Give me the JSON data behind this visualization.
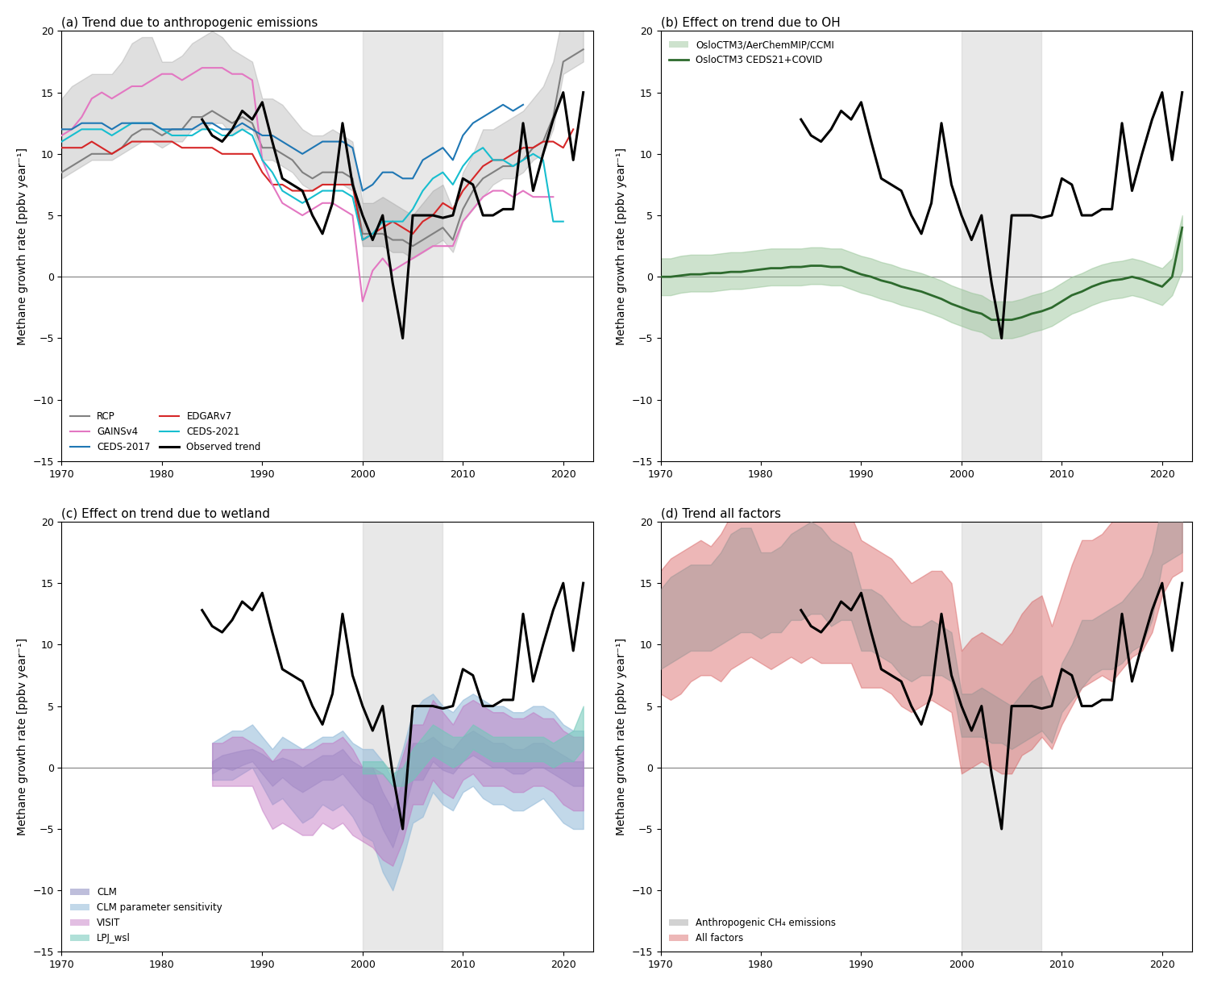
{
  "title_a": "(a) Trend due to anthropogenic emissions",
  "title_b": "(b) Effect on trend due to OH",
  "title_c": "(c) Effect on trend due to wetland",
  "title_d": "(d) Trend all factors",
  "ylabel": "Methane growth rate [ppbv year⁻¹]",
  "xlim": [
    1970,
    2023
  ],
  "ylim": [
    -15,
    20
  ],
  "yticks": [
    -15,
    -10,
    -5,
    0,
    5,
    10,
    15,
    20
  ],
  "shade_region": [
    2000,
    2008
  ],
  "years_obs": [
    1984,
    1985,
    1986,
    1987,
    1988,
    1989,
    1990,
    1991,
    1992,
    1993,
    1994,
    1995,
    1996,
    1997,
    1998,
    1999,
    2000,
    2001,
    2002,
    2003,
    2004,
    2005,
    2006,
    2007,
    2008,
    2009,
    2010,
    2011,
    2012,
    2013,
    2014,
    2015,
    2016,
    2017,
    2018,
    2019,
    2020,
    2021,
    2022
  ],
  "obs": [
    12.8,
    11.5,
    11.0,
    12.0,
    13.5,
    12.8,
    14.2,
    11.0,
    8.0,
    7.5,
    7.0,
    5.0,
    3.5,
    6.0,
    12.5,
    7.5,
    5.0,
    3.0,
    5.0,
    -0.5,
    -5.0,
    5.0,
    5.0,
    5.0,
    4.8,
    5.0,
    8.0,
    7.5,
    5.0,
    5.0,
    5.5,
    5.5,
    12.5,
    7.0,
    10.0,
    12.8,
    15.0,
    9.5,
    15.0
  ],
  "years_rcp": [
    1970,
    1971,
    1972,
    1973,
    1974,
    1975,
    1976,
    1977,
    1978,
    1979,
    1980,
    1981,
    1982,
    1983,
    1984,
    1985,
    1986,
    1987,
    1988,
    1989,
    1990,
    1991,
    1992,
    1993,
    1994,
    1995,
    1996,
    1997,
    1998,
    1999,
    2000,
    2001,
    2002,
    2003,
    2004,
    2005,
    2006,
    2007,
    2008,
    2009,
    2010,
    2011,
    2012,
    2013,
    2014,
    2015,
    2016,
    2017,
    2018,
    2019,
    2020,
    2021,
    2022
  ],
  "rcp_mid": [
    8.5,
    9.0,
    9.5,
    10.0,
    10.0,
    10.0,
    10.5,
    11.5,
    12.0,
    12.0,
    11.5,
    12.0,
    12.0,
    13.0,
    13.0,
    13.5,
    13.0,
    12.5,
    13.0,
    12.5,
    10.5,
    10.5,
    10.0,
    9.5,
    8.5,
    8.0,
    8.5,
    8.5,
    8.5,
    8.0,
    3.5,
    3.5,
    3.5,
    3.0,
    3.0,
    2.5,
    3.0,
    3.5,
    4.0,
    3.0,
    5.5,
    7.0,
    8.0,
    8.5,
    9.0,
    9.0,
    9.5,
    10.5,
    11.0,
    13.0,
    17.5,
    18.0,
    18.5
  ],
  "rcp_lo": [
    8.0,
    8.5,
    9.0,
    9.5,
    9.5,
    9.5,
    10.0,
    10.5,
    11.0,
    11.0,
    10.5,
    11.0,
    11.0,
    12.0,
    12.0,
    12.5,
    12.5,
    11.5,
    12.0,
    12.0,
    9.5,
    9.5,
    9.0,
    8.5,
    7.5,
    7.0,
    7.5,
    7.5,
    7.5,
    7.0,
    2.5,
    2.5,
    2.5,
    2.0,
    2.0,
    1.5,
    2.0,
    2.5,
    3.0,
    2.0,
    4.5,
    5.5,
    6.5,
    7.5,
    8.0,
    8.0,
    8.5,
    9.5,
    10.0,
    12.0,
    16.5,
    17.0,
    17.5
  ],
  "rcp_hi": [
    14.5,
    15.5,
    16.0,
    16.5,
    16.5,
    16.5,
    17.5,
    19.0,
    19.5,
    19.5,
    17.5,
    17.5,
    18.0,
    19.0,
    19.5,
    20.0,
    19.5,
    18.5,
    18.0,
    17.5,
    14.5,
    14.5,
    14.0,
    13.0,
    12.0,
    11.5,
    11.5,
    12.0,
    11.5,
    11.0,
    6.0,
    6.0,
    6.5,
    6.0,
    5.5,
    5.0,
    6.0,
    7.0,
    7.5,
    5.5,
    8.5,
    10.0,
    12.0,
    12.0,
    12.5,
    13.0,
    13.5,
    14.5,
    15.5,
    17.5,
    21.5,
    22.0,
    22.0
  ],
  "years_edgar": [
    1970,
    1971,
    1972,
    1973,
    1974,
    1975,
    1976,
    1977,
    1978,
    1979,
    1980,
    1981,
    1982,
    1983,
    1984,
    1985,
    1986,
    1987,
    1988,
    1989,
    1990,
    1991,
    1992,
    1993,
    1994,
    1995,
    1996,
    1997,
    1998,
    1999,
    2000,
    2001,
    2002,
    2003,
    2004,
    2005,
    2006,
    2007,
    2008,
    2009,
    2010,
    2011,
    2012,
    2013,
    2014,
    2015,
    2016,
    2017,
    2018,
    2019,
    2020,
    2021
  ],
  "edgar": [
    10.5,
    10.5,
    10.5,
    11.0,
    10.5,
    10.0,
    10.5,
    11.0,
    11.0,
    11.0,
    11.0,
    11.0,
    10.5,
    10.5,
    10.5,
    10.5,
    10.0,
    10.0,
    10.0,
    10.0,
    8.5,
    7.5,
    7.5,
    7.0,
    7.0,
    7.0,
    7.5,
    7.5,
    7.5,
    7.5,
    3.0,
    3.5,
    4.0,
    4.5,
    4.0,
    3.5,
    4.5,
    5.0,
    6.0,
    5.5,
    7.0,
    8.0,
    9.0,
    9.5,
    9.5,
    10.0,
    10.5,
    10.5,
    11.0,
    11.0,
    10.5,
    12.0
  ],
  "years_gains": [
    1970,
    1971,
    1972,
    1973,
    1974,
    1975,
    1976,
    1977,
    1978,
    1979,
    1980,
    1981,
    1982,
    1983,
    1984,
    1985,
    1986,
    1987,
    1988,
    1989,
    1990,
    1991,
    1992,
    1993,
    1994,
    1995,
    1996,
    1997,
    1998,
    1999,
    2000,
    2001,
    2002,
    2003,
    2004,
    2005,
    2006,
    2007,
    2008,
    2009,
    2010,
    2011,
    2012,
    2013,
    2014,
    2015,
    2016,
    2017,
    2018,
    2019
  ],
  "gains": [
    11.5,
    12.0,
    13.0,
    14.5,
    15.0,
    14.5,
    15.0,
    15.5,
    15.5,
    16.0,
    16.5,
    16.5,
    16.0,
    16.5,
    17.0,
    17.0,
    17.0,
    16.5,
    16.5,
    16.0,
    9.5,
    7.5,
    6.0,
    5.5,
    5.0,
    5.5,
    6.0,
    6.0,
    5.5,
    5.0,
    -2.0,
    0.5,
    1.5,
    0.5,
    1.0,
    1.5,
    2.0,
    2.5,
    2.5,
    2.5,
    4.5,
    5.5,
    6.5,
    7.0,
    7.0,
    6.5,
    7.0,
    6.5,
    6.5,
    6.5
  ],
  "years_ceds17": [
    1970,
    1971,
    1972,
    1973,
    1974,
    1975,
    1976,
    1977,
    1978,
    1979,
    1980,
    1981,
    1982,
    1983,
    1984,
    1985,
    1986,
    1987,
    1988,
    1989,
    1990,
    1991,
    1992,
    1993,
    1994,
    1995,
    1996,
    1997,
    1998,
    1999,
    2000,
    2001,
    2002,
    2003,
    2004,
    2005,
    2006,
    2007,
    2008,
    2009,
    2010,
    2011,
    2012,
    2013,
    2014,
    2015,
    2016
  ],
  "ceds17": [
    12.0,
    12.0,
    12.5,
    12.5,
    12.5,
    12.0,
    12.5,
    12.5,
    12.5,
    12.5,
    12.0,
    12.0,
    12.0,
    12.0,
    12.5,
    12.5,
    12.0,
    12.0,
    12.5,
    12.0,
    11.5,
    11.5,
    11.0,
    10.5,
    10.0,
    10.5,
    11.0,
    11.0,
    11.0,
    10.5,
    7.0,
    7.5,
    8.5,
    8.5,
    8.0,
    8.0,
    9.5,
    10.0,
    10.5,
    9.5,
    11.5,
    12.5,
    13.0,
    13.5,
    14.0,
    13.5,
    14.0
  ],
  "years_ceds21": [
    1970,
    1971,
    1972,
    1973,
    1974,
    1975,
    1976,
    1977,
    1978,
    1979,
    1980,
    1981,
    1982,
    1983,
    1984,
    1985,
    1986,
    1987,
    1988,
    1989,
    1990,
    1991,
    1992,
    1993,
    1994,
    1995,
    1996,
    1997,
    1998,
    1999,
    2000,
    2001,
    2002,
    2003,
    2004,
    2005,
    2006,
    2007,
    2008,
    2009,
    2010,
    2011,
    2012,
    2013,
    2014,
    2015,
    2016,
    2017,
    2018,
    2019,
    2020
  ],
  "ceds21": [
    11.0,
    11.5,
    12.0,
    12.0,
    12.0,
    11.5,
    12.0,
    12.5,
    12.5,
    12.5,
    12.0,
    11.5,
    11.5,
    11.5,
    12.0,
    12.0,
    11.5,
    11.5,
    12.0,
    11.5,
    9.5,
    8.5,
    7.0,
    6.5,
    6.0,
    6.5,
    7.0,
    7.0,
    7.0,
    6.5,
    3.0,
    3.5,
    4.5,
    4.5,
    4.5,
    5.5,
    7.0,
    8.0,
    8.5,
    7.5,
    9.0,
    10.0,
    10.5,
    9.5,
    9.5,
    9.0,
    9.5,
    10.0,
    9.5,
    4.5,
    4.5
  ],
  "years_oh_green": [
    1970,
    1971,
    1972,
    1973,
    1974,
    1975,
    1976,
    1977,
    1978,
    1979,
    1980,
    1981,
    1982,
    1983,
    1984,
    1985,
    1986,
    1987,
    1988,
    1989,
    1990,
    1991,
    1992,
    1993,
    1994,
    1995,
    1996,
    1997,
    1998,
    1999,
    2000,
    2001,
    2002,
    2003,
    2004,
    2005,
    2006,
    2007,
    2008,
    2009,
    2010,
    2011,
    2012,
    2013,
    2014,
    2015,
    2016,
    2017,
    2018,
    2019,
    2020,
    2021,
    2022
  ],
  "oh_green_mid": [
    0.0,
    0.0,
    0.1,
    0.2,
    0.2,
    0.3,
    0.3,
    0.4,
    0.4,
    0.5,
    0.6,
    0.7,
    0.7,
    0.8,
    0.8,
    0.9,
    0.9,
    0.8,
    0.8,
    0.5,
    0.2,
    0.0,
    -0.3,
    -0.5,
    -0.8,
    -1.0,
    -1.2,
    -1.5,
    -1.8,
    -2.2,
    -2.5,
    -2.8,
    -3.0,
    -3.5,
    -3.5,
    -3.5,
    -3.3,
    -3.0,
    -2.8,
    -2.5,
    -2.0,
    -1.5,
    -1.2,
    -0.8,
    -0.5,
    -0.3,
    -0.2,
    0.0,
    -0.2,
    -0.5,
    -0.8,
    0.0,
    4.0
  ],
  "oh_green_lo": [
    -1.5,
    -1.5,
    -1.3,
    -1.2,
    -1.2,
    -1.2,
    -1.1,
    -1.0,
    -1.0,
    -0.9,
    -0.8,
    -0.7,
    -0.7,
    -0.7,
    -0.7,
    -0.6,
    -0.6,
    -0.7,
    -0.7,
    -1.0,
    -1.3,
    -1.5,
    -1.8,
    -2.0,
    -2.3,
    -2.5,
    -2.7,
    -3.0,
    -3.3,
    -3.7,
    -4.0,
    -4.3,
    -4.5,
    -5.0,
    -5.0,
    -5.0,
    -4.8,
    -4.5,
    -4.3,
    -4.0,
    -3.5,
    -3.0,
    -2.7,
    -2.3,
    -2.0,
    -1.8,
    -1.7,
    -1.5,
    -1.7,
    -2.0,
    -2.3,
    -1.5,
    0.5
  ],
  "oh_green_hi": [
    1.5,
    1.5,
    1.7,
    1.8,
    1.8,
    1.8,
    1.9,
    2.0,
    2.0,
    2.1,
    2.2,
    2.3,
    2.3,
    2.3,
    2.3,
    2.4,
    2.4,
    2.3,
    2.3,
    2.0,
    1.7,
    1.5,
    1.2,
    1.0,
    0.7,
    0.5,
    0.3,
    0.0,
    -0.3,
    -0.7,
    -1.0,
    -1.3,
    -1.5,
    -2.0,
    -2.0,
    -2.0,
    -1.8,
    -1.5,
    -1.3,
    -1.0,
    -0.5,
    0.0,
    0.3,
    0.7,
    1.0,
    1.2,
    1.3,
    1.5,
    1.3,
    1.0,
    0.7,
    1.5,
    5.0
  ],
  "years_wetland_clm": [
    1985,
    1986,
    1987,
    1988,
    1989,
    1990,
    1991,
    1992,
    1993,
    1994,
    1995,
    1996,
    1997,
    1998,
    1999,
    2000,
    2001,
    2002,
    2003,
    2004,
    2005,
    2006,
    2007,
    2008,
    2009,
    2010,
    2011,
    2012,
    2013,
    2014,
    2015,
    2016,
    2017,
    2018,
    2019,
    2020,
    2021,
    2022
  ],
  "clm_lo": [
    -0.5,
    0.0,
    -0.2,
    0.2,
    0.5,
    -0.5,
    -1.5,
    -0.8,
    -1.5,
    -2.0,
    -1.5,
    -1.0,
    -1.0,
    -0.5,
    -1.5,
    -2.5,
    -3.0,
    -5.0,
    -6.5,
    -4.0,
    -1.0,
    -1.0,
    0.5,
    -0.2,
    -0.5,
    0.5,
    1.0,
    0.5,
    0.0,
    0.0,
    -0.5,
    -0.5,
    0.0,
    0.0,
    -0.5,
    -1.0,
    -1.5,
    -1.5
  ],
  "clm_hi": [
    0.5,
    1.0,
    1.2,
    1.4,
    1.5,
    1.1,
    0.5,
    0.8,
    0.5,
    0.0,
    0.5,
    1.0,
    1.0,
    1.5,
    0.5,
    0.0,
    0.0,
    -2.0,
    -3.5,
    -1.0,
    2.0,
    2.0,
    2.5,
    1.8,
    1.5,
    2.5,
    3.0,
    2.5,
    2.0,
    2.0,
    1.5,
    1.5,
    2.0,
    2.0,
    1.5,
    1.0,
    0.5,
    0.5
  ],
  "years_wetland_clm_ps": [
    1985,
    1986,
    1987,
    1988,
    1989,
    1990,
    1991,
    1992,
    1993,
    1994,
    1995,
    1996,
    1997,
    1998,
    1999,
    2000,
    2001,
    2002,
    2003,
    2004,
    2005,
    2006,
    2007,
    2008,
    2009,
    2010,
    2011,
    2012,
    2013,
    2014,
    2015,
    2016,
    2017,
    2018,
    2019,
    2020,
    2021,
    2022
  ],
  "clm_ps_lo": [
    -1.0,
    -1.0,
    -1.0,
    -0.5,
    0.0,
    -1.5,
    -3.0,
    -2.5,
    -3.5,
    -4.5,
    -4.0,
    -3.0,
    -3.5,
    -3.0,
    -4.0,
    -5.5,
    -6.0,
    -8.5,
    -10.0,
    -7.5,
    -4.5,
    -4.0,
    -2.0,
    -3.0,
    -3.5,
    -2.0,
    -1.5,
    -2.5,
    -3.0,
    -3.0,
    -3.5,
    -3.5,
    -3.0,
    -2.5,
    -3.5,
    -4.5,
    -5.0,
    -5.0
  ],
  "clm_ps_hi": [
    2.0,
    2.5,
    3.0,
    3.0,
    3.5,
    2.5,
    1.5,
    2.5,
    2.0,
    1.5,
    2.0,
    2.5,
    2.5,
    3.0,
    2.0,
    1.5,
    1.5,
    0.5,
    -1.0,
    1.5,
    4.5,
    5.5,
    6.0,
    5.0,
    4.5,
    5.5,
    6.0,
    5.5,
    5.0,
    5.0,
    4.5,
    4.5,
    5.0,
    5.0,
    4.5,
    3.5,
    3.0,
    3.0
  ],
  "years_wetland_visit": [
    1985,
    1986,
    1987,
    1988,
    1989,
    1990,
    1991,
    1992,
    1993,
    1994,
    1995,
    1996,
    1997,
    1998,
    1999,
    2000,
    2001,
    2002,
    2003,
    2004,
    2005,
    2006,
    2007,
    2008,
    2009,
    2010,
    2011,
    2012,
    2013,
    2014,
    2015,
    2016,
    2017,
    2018,
    2019,
    2020,
    2021,
    2022
  ],
  "visit_lo": [
    -1.5,
    -1.5,
    -1.5,
    -1.5,
    -1.5,
    -3.5,
    -5.0,
    -4.5,
    -5.0,
    -5.5,
    -5.5,
    -4.5,
    -5.0,
    -4.5,
    -5.5,
    -6.0,
    -6.5,
    -7.5,
    -8.0,
    -6.0,
    -3.0,
    -3.0,
    -1.0,
    -2.0,
    -2.5,
    -1.0,
    -0.5,
    -1.5,
    -1.5,
    -1.5,
    -2.0,
    -2.0,
    -1.5,
    -1.5,
    -2.0,
    -3.0,
    -3.5,
    -3.5
  ],
  "visit_hi": [
    2.0,
    2.0,
    2.5,
    2.5,
    2.0,
    1.5,
    0.5,
    1.5,
    1.5,
    1.5,
    1.5,
    2.0,
    2.0,
    2.5,
    1.5,
    0.0,
    0.0,
    -0.5,
    -1.5,
    1.0,
    3.5,
    3.5,
    5.5,
    4.5,
    3.5,
    5.0,
    5.5,
    5.0,
    4.5,
    4.5,
    4.0,
    4.0,
    4.5,
    4.0,
    4.0,
    3.0,
    2.5,
    2.5
  ],
  "years_wetland_lpj": [
    2000,
    2001,
    2002,
    2003,
    2004,
    2005,
    2006,
    2007,
    2008,
    2009,
    2010,
    2011,
    2012,
    2013,
    2014,
    2015,
    2016,
    2017,
    2018,
    2019,
    2020,
    2021,
    2022
  ],
  "lpj_lo": [
    -0.5,
    -0.5,
    -0.5,
    -1.5,
    -1.5,
    -1.0,
    0.0,
    1.0,
    0.5,
    0.0,
    0.5,
    1.5,
    1.0,
    0.5,
    0.5,
    0.5,
    0.5,
    0.5,
    0.5,
    0.0,
    0.5,
    0.5,
    1.5
  ],
  "lpj_hi": [
    0.5,
    0.5,
    0.5,
    -0.5,
    0.0,
    1.5,
    2.5,
    3.5,
    3.0,
    2.5,
    2.5,
    3.5,
    3.0,
    2.5,
    2.5,
    2.5,
    2.5,
    2.5,
    2.5,
    2.0,
    2.5,
    3.0,
    5.0
  ],
  "allfact_lo": [
    6.0,
    5.5,
    6.0,
    7.0,
    7.5,
    7.5,
    7.0,
    8.0,
    8.5,
    9.0,
    8.5,
    8.0,
    8.5,
    9.0,
    8.5,
    9.0,
    8.5,
    8.5,
    8.5,
    8.5,
    6.5,
    6.5,
    6.5,
    6.0,
    5.0,
    4.5,
    5.0,
    5.5,
    5.0,
    4.5,
    -0.5,
    0.0,
    0.5,
    0.0,
    -0.5,
    -0.5,
    1.0,
    1.5,
    2.5,
    1.5,
    3.5,
    5.0,
    6.5,
    7.0,
    7.5,
    7.0,
    8.0,
    9.0,
    9.5,
    11.0,
    14.0,
    15.5,
    16.0
  ],
  "allfact_hi": [
    16.0,
    17.0,
    17.5,
    18.0,
    18.5,
    18.0,
    19.0,
    20.5,
    21.0,
    21.5,
    20.5,
    20.5,
    20.5,
    21.5,
    21.5,
    22.0,
    21.0,
    21.0,
    21.5,
    20.5,
    18.5,
    18.0,
    17.5,
    17.0,
    16.0,
    15.0,
    15.5,
    16.0,
    16.0,
    15.0,
    9.5,
    10.5,
    11.0,
    10.5,
    10.0,
    11.0,
    12.5,
    13.5,
    14.0,
    11.5,
    14.0,
    16.5,
    18.5,
    18.5,
    19.0,
    20.0,
    21.0,
    22.0,
    23.0,
    24.0,
    27.5,
    28.0,
    28.5
  ],
  "color_rcp": "#808080",
  "color_edgar": "#d62728",
  "color_gains": "#e377c2",
  "color_ceds17": "#1f77b4",
  "color_ceds21": "#17becf",
  "color_obs": "#000000",
  "color_oh_band": "#90c090",
  "color_oh_line": "#2d6a2d",
  "color_clm": "#7070b0",
  "color_clm_ps": "#90b8d8",
  "color_visit": "#c070c0",
  "color_lpj": "#70c8b8",
  "color_gray_band": "#909090",
  "color_red_band": "#d86060"
}
